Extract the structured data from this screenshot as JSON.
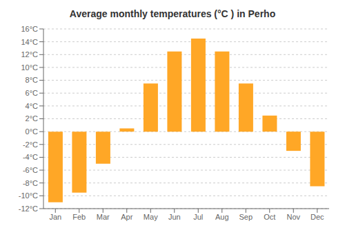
{
  "chart_data": {
    "type": "bar",
    "title": "Average monthly temperatures (°C ) in Perho",
    "categories": [
      "Jan",
      "Feb",
      "Mar",
      "Apr",
      "May",
      "Jun",
      "Jul",
      "Aug",
      "Sep",
      "Oct",
      "Nov",
      "Dec"
    ],
    "values": [
      -11.0,
      -9.5,
      -5.0,
      0.5,
      7.5,
      12.5,
      14.5,
      12.5,
      7.5,
      2.5,
      -3.0,
      -8.5
    ],
    "color": "#FFA726",
    "ylim": [
      -12,
      16
    ],
    "yticks": [
      {
        "value": -12,
        "label": "-12°C"
      },
      {
        "value": -10,
        "label": "-10°C"
      },
      {
        "value": -8,
        "label": "-8°C"
      },
      {
        "value": -6,
        "label": "-6°C"
      },
      {
        "value": -4,
        "label": "-4°C"
      },
      {
        "value": -2,
        "label": "-2°C"
      },
      {
        "value": 0,
        "label": "0°C"
      },
      {
        "value": 2,
        "label": "2°C"
      },
      {
        "value": 4,
        "label": "4°C"
      },
      {
        "value": 6,
        "label": "6°C"
      },
      {
        "value": 8,
        "label": "8°C"
      },
      {
        "value": 10,
        "label": "10°C"
      },
      {
        "value": 12,
        "label": "12°C"
      },
      {
        "value": 14,
        "label": "14°C"
      },
      {
        "value": 16,
        "label": "16°C"
      }
    ],
    "grid": true
  }
}
